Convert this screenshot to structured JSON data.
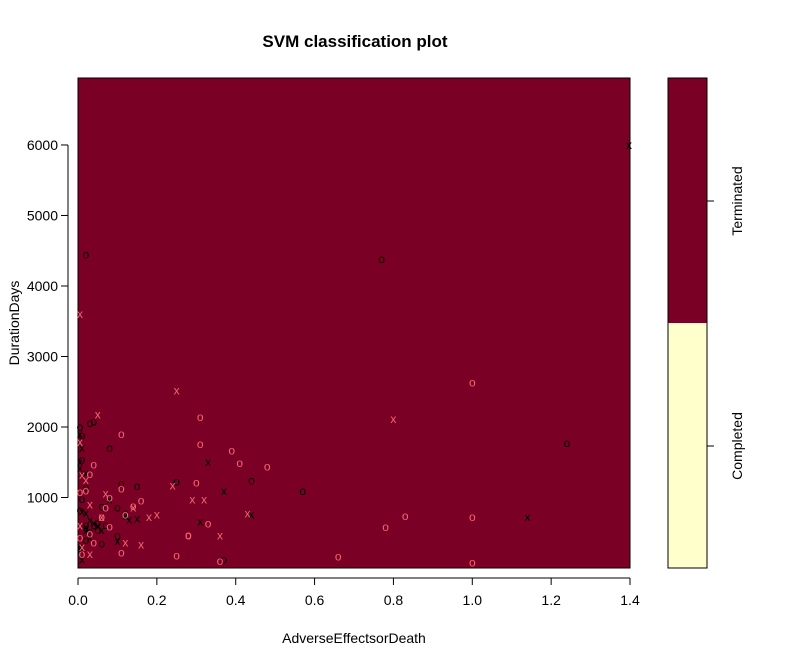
{
  "chart_data": {
    "type": "scatter",
    "title": "SVM classification plot",
    "xlabel": "AdverseEffectsorDeath",
    "ylabel": "DurationDays",
    "xlim": [
      0,
      1.4
    ],
    "ylim": [
      0,
      6950
    ],
    "x_ticks": [
      "0.0",
      "0.2",
      "0.4",
      "0.6",
      "0.8",
      "1.0",
      "1.2",
      "1.4"
    ],
    "y_ticks": [
      "1000",
      "2000",
      "3000",
      "4000",
      "5000",
      "6000"
    ],
    "grid": false,
    "background_class": "Terminated",
    "colors": {
      "Terminated": "#7b0025",
      "Completed": "#ffffcc",
      "support_vector_x": "#000000",
      "point_o": "#f26670"
    },
    "legend": {
      "placement": "right",
      "classes": [
        "Completed",
        "Terminated"
      ]
    },
    "markers": {
      "x_symbol": "x",
      "o_symbol": "o"
    },
    "series": [
      {
        "marker": "x",
        "color": "#000000",
        "points": [
          [
            1.4,
            6000
          ],
          [
            0.33,
            1500
          ],
          [
            0.43,
            770
          ],
          [
            0.44,
            760
          ],
          [
            0.37,
            1090
          ],
          [
            0.31,
            660
          ],
          [
            1.14,
            720
          ],
          [
            0.15,
            700
          ],
          [
            0.12,
            740
          ],
          [
            0.13,
            690
          ],
          [
            0.08,
            970
          ],
          [
            0.05,
            600
          ],
          [
            0.03,
            680
          ],
          [
            0.02,
            580
          ],
          [
            0.01,
            1320
          ],
          [
            0.02,
            1350
          ],
          [
            0.0,
            1500
          ],
          [
            0.0,
            1420
          ],
          [
            0.01,
            1700
          ],
          [
            0.005,
            1900
          ],
          [
            0.02,
            530
          ],
          [
            0.04,
            640
          ],
          [
            0.06,
            540
          ],
          [
            0.0,
            260
          ],
          [
            0.01,
            120
          ],
          [
            0.0,
            300
          ],
          [
            0.03,
            430
          ],
          [
            0.1,
            380
          ],
          [
            0.01,
            800
          ],
          [
            0.02,
            780
          ]
        ]
      },
      {
        "marker": "o",
        "color": "#000000",
        "points": [
          [
            0.02,
            4450
          ],
          [
            0.77,
            4380
          ],
          [
            1.24,
            1770
          ],
          [
            0.57,
            1090
          ],
          [
            0.44,
            1240
          ],
          [
            0.25,
            1230
          ],
          [
            0.15,
            1160
          ],
          [
            0.04,
            2080
          ],
          [
            0.03,
            2060
          ],
          [
            0.08,
            1700
          ],
          [
            0.11,
            1200
          ],
          [
            0.12,
            780
          ],
          [
            0.1,
            860
          ],
          [
            0.07,
            610
          ],
          [
            0.05,
            640
          ],
          [
            0.05,
            540
          ],
          [
            0.03,
            510
          ],
          [
            0.04,
            600
          ],
          [
            0.02,
            1140
          ],
          [
            0.01,
            980
          ],
          [
            0.0,
            820
          ],
          [
            0.02,
            400
          ],
          [
            0.01,
            1880
          ],
          [
            0.005,
            2000
          ],
          [
            0.01,
            1540
          ],
          [
            0.06,
            870
          ],
          [
            0.1,
            460
          ],
          [
            0.37,
            120
          ],
          [
            0.06,
            350
          ],
          [
            0.02,
            610
          ]
        ]
      },
      {
        "marker": "x",
        "color": "#f26670",
        "points": [
          [
            0.0,
            3600
          ],
          [
            0.25,
            2520
          ],
          [
            0.8,
            2110
          ],
          [
            0.05,
            2180
          ],
          [
            0.03,
            900
          ],
          [
            0.14,
            860
          ],
          [
            0.18,
            720
          ],
          [
            0.2,
            760
          ],
          [
            0.24,
            1170
          ],
          [
            0.29,
            970
          ],
          [
            0.32,
            970
          ],
          [
            0.36,
            460
          ],
          [
            0.43,
            770
          ],
          [
            0.16,
            330
          ],
          [
            0.12,
            360
          ],
          [
            0.01,
            1320
          ],
          [
            0.0,
            1790
          ],
          [
            0.02,
            1250
          ],
          [
            0.07,
            1060
          ],
          [
            0.06,
            720
          ],
          [
            0.0,
            600
          ],
          [
            0.01,
            300
          ],
          [
            0.03,
            200
          ]
        ]
      },
      {
        "marker": "o",
        "color": "#f26670",
        "points": [
          [
            1.0,
            2630
          ],
          [
            0.31,
            2140
          ],
          [
            0.31,
            1760
          ],
          [
            0.39,
            1670
          ],
          [
            0.41,
            1490
          ],
          [
            0.48,
            1440
          ],
          [
            0.11,
            1900
          ],
          [
            0.04,
            1470
          ],
          [
            0.03,
            1330
          ],
          [
            0.11,
            1130
          ],
          [
            0.3,
            1210
          ],
          [
            0.16,
            960
          ],
          [
            0.14,
            880
          ],
          [
            0.08,
            1000
          ],
          [
            0.07,
            860
          ],
          [
            0.06,
            720
          ],
          [
            0.12,
            760
          ],
          [
            0.28,
            460
          ],
          [
            0.33,
            630
          ],
          [
            0.25,
            180
          ],
          [
            0.11,
            220
          ],
          [
            0.08,
            590
          ],
          [
            0.36,
            100
          ],
          [
            0.66,
            160
          ],
          [
            0.78,
            580
          ],
          [
            0.83,
            740
          ],
          [
            1.0,
            720
          ],
          [
            1.0,
            80
          ],
          [
            0.28,
            470
          ],
          [
            0.04,
            360
          ],
          [
            0.03,
            490
          ],
          [
            0.0,
            430
          ],
          [
            0.01,
            200
          ],
          [
            0.02,
            1100
          ],
          [
            0.0,
            1080
          ]
        ]
      }
    ]
  }
}
